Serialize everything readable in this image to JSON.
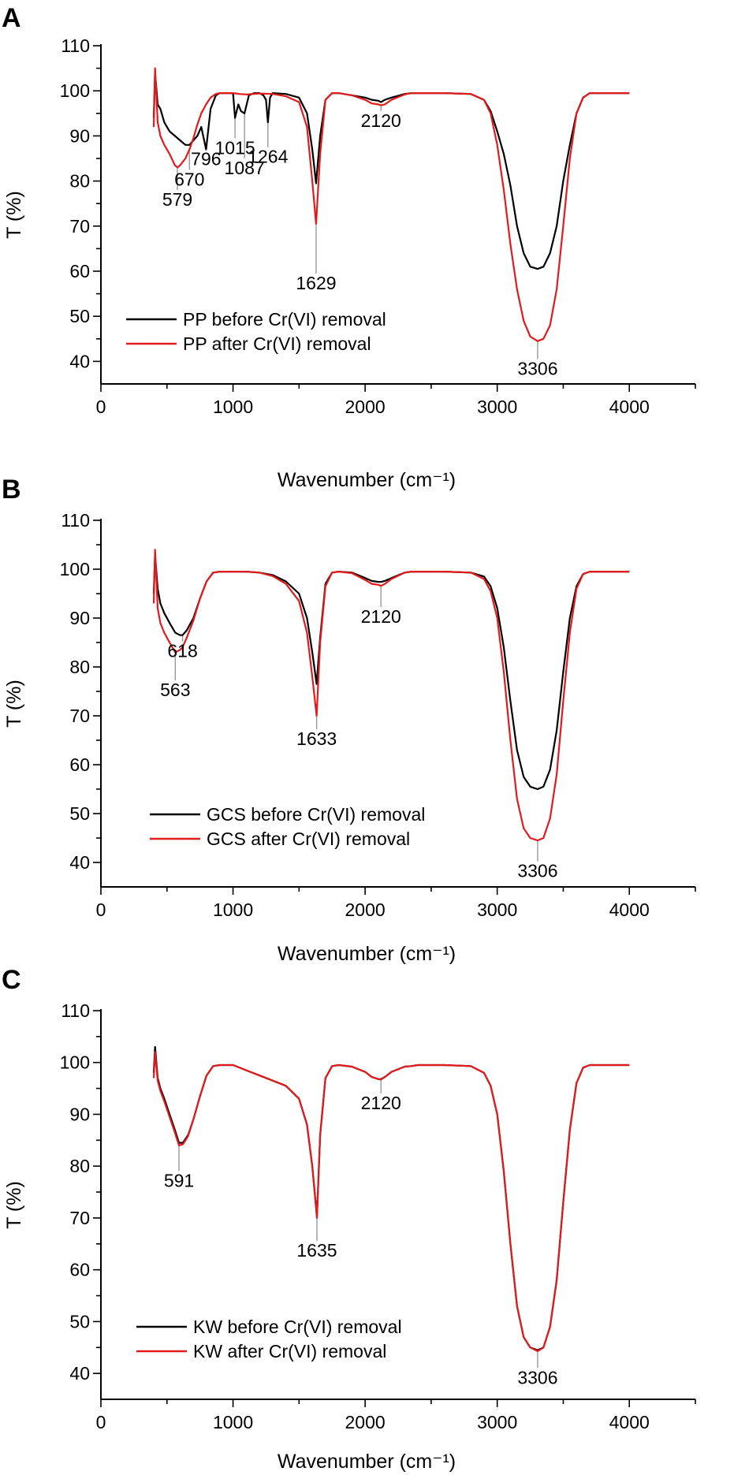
{
  "chart_data": [
    {
      "panel_label": "A",
      "type": "line",
      "title": "",
      "xlabel": "Wavenumber (cm⁻¹)",
      "ylabel": "T (%)",
      "xlim": [
        0,
        4500
      ],
      "ylim": [
        35,
        110
      ],
      "x_ticks": [
        "0",
        "1000",
        "2000",
        "3000",
        "4000"
      ],
      "y_ticks": [
        "40",
        "50",
        "60",
        "70",
        "80",
        "90",
        "100",
        "110"
      ],
      "grid": false,
      "legend_position": "bottom-left",
      "series": [
        {
          "name": "PP before Cr(VI) removal",
          "color": "#000000",
          "x": [
            400,
            410,
            430,
            450,
            480,
            520,
            560,
            600,
            640,
            670,
            700,
            730,
            760,
            796,
            830,
            870,
            900,
            950,
            1000,
            1015,
            1040,
            1060,
            1087,
            1120,
            1160,
            1200,
            1230,
            1250,
            1264,
            1280,
            1300,
            1400,
            1500,
            1560,
            1600,
            1629,
            1660,
            1700,
            1750,
            1800,
            1900,
            2000,
            2050,
            2100,
            2120,
            2150,
            2200,
            2300,
            2350,
            2400,
            2600,
            2800,
            2900,
            2950,
            3000,
            3050,
            3100,
            3150,
            3200,
            3250,
            3306,
            3350,
            3400,
            3450,
            3500,
            3550,
            3600,
            3650,
            3700,
            3750,
            3800,
            3900,
            4000
          ],
          "y": [
            94,
            104,
            97,
            96,
            93,
            91,
            90,
            89,
            88,
            88,
            89,
            90,
            92,
            87,
            96,
            99,
            99.5,
            99.5,
            99.5,
            94,
            97,
            95.5,
            95,
            99,
            99.5,
            99.5,
            99,
            98,
            93,
            98.5,
            99.5,
            99.3,
            98.5,
            95,
            87,
            79.5,
            90,
            98,
            99.5,
            99.5,
            99,
            98.5,
            98,
            97.8,
            97.5,
            98,
            98.5,
            99.3,
            99.5,
            99.5,
            99.5,
            99.3,
            98,
            95.5,
            91,
            86,
            79,
            70,
            64,
            61,
            60.5,
            61,
            64,
            70,
            80,
            88,
            95,
            98.5,
            99.5,
            99.5,
            99.5,
            99.5,
            99.5
          ]
        },
        {
          "name": "PP after Cr(VI) removal",
          "color": "#e31a1c",
          "x": [
            400,
            410,
            430,
            450,
            480,
            520,
            560,
            579,
            600,
            640,
            670,
            700,
            730,
            760,
            796,
            830,
            870,
            900,
            950,
            1000,
            1050,
            1100,
            1200,
            1300,
            1400,
            1500,
            1560,
            1600,
            1629,
            1660,
            1700,
            1750,
            1800,
            1900,
            2000,
            2050,
            2100,
            2120,
            2150,
            2200,
            2300,
            2350,
            2400,
            2600,
            2800,
            2900,
            2950,
            3000,
            3050,
            3100,
            3150,
            3200,
            3250,
            3306,
            3350,
            3400,
            3450,
            3500,
            3550,
            3600,
            3650,
            3700,
            3750,
            3800,
            3900,
            4000
          ],
          "y": [
            92,
            105,
            93,
            90,
            88,
            86,
            83.5,
            83,
            83.5,
            85,
            87,
            89.5,
            92.5,
            95,
            97,
            98.5,
            99.3,
            99.5,
            99.5,
            99.5,
            99.3,
            99.2,
            99.4,
            99.3,
            98.8,
            97.5,
            92,
            80,
            70.5,
            86,
            98,
            99.5,
            99.5,
            99,
            98,
            97.2,
            97,
            96.8,
            97,
            98,
            99.2,
            99.5,
            99.5,
            99.5,
            99.3,
            98,
            95,
            88,
            78,
            66,
            56,
            49,
            45.5,
            44.5,
            45,
            48,
            56,
            70,
            85,
            95,
            98.5,
            99.5,
            99.5,
            99.5,
            99.5,
            99.5
          ]
        }
      ],
      "annotations": [
        {
          "text": "579",
          "x": 579,
          "y": 83,
          "label_y": 74.5
        },
        {
          "text": "670",
          "x": 670,
          "y": 87,
          "label_y": 79
        },
        {
          "text": "796",
          "x": 796,
          "y": 87,
          "label_y": 83.5
        },
        {
          "text": "1015",
          "x": 1015,
          "y": 94,
          "label_y": 86
        },
        {
          "text": "1087",
          "x": 1087,
          "y": 95,
          "label_y": 81.5
        },
        {
          "text": "1264",
          "x": 1264,
          "y": 93,
          "label_y": 84
        },
        {
          "text": "1629",
          "x": 1629,
          "y": 70.5,
          "label_y": 56
        },
        {
          "text": "2120",
          "x": 2120,
          "y": 97,
          "label_y": 92
        },
        {
          "text": "3306",
          "x": 3306,
          "y": 44.5,
          "label_y": 37
        }
      ]
    },
    {
      "panel_label": "B",
      "type": "line",
      "title": "",
      "xlabel": "Wavenumber (cm⁻¹)",
      "ylabel": "T (%)",
      "xlim": [
        0,
        4500
      ],
      "ylim": [
        35,
        110
      ],
      "x_ticks": [
        "0",
        "1000",
        "2000",
        "3000",
        "4000"
      ],
      "y_ticks": [
        "40",
        "50",
        "60",
        "70",
        "80",
        "90",
        "100",
        "110"
      ],
      "grid": false,
      "legend_position": "bottom-left",
      "series": [
        {
          "name": "GCS before Cr(VI) removal",
          "color": "#000000",
          "x": [
            400,
            410,
            430,
            450,
            480,
            520,
            563,
            600,
            618,
            650,
            700,
            750,
            800,
            850,
            900,
            1000,
            1100,
            1200,
            1300,
            1400,
            1500,
            1560,
            1600,
            1633,
            1660,
            1700,
            1750,
            1800,
            1900,
            2000,
            2050,
            2100,
            2120,
            2150,
            2200,
            2300,
            2350,
            2400,
            2600,
            2800,
            2900,
            2950,
            3000,
            3050,
            3100,
            3150,
            3200,
            3250,
            3306,
            3350,
            3400,
            3450,
            3500,
            3550,
            3600,
            3650,
            3700,
            3750,
            3800,
            3900,
            4000
          ],
          "y": [
            95,
            103,
            96,
            93,
            91,
            89,
            87,
            86.5,
            86.5,
            87.5,
            90,
            94,
            97.5,
            99.3,
            99.5,
            99.5,
            99.5,
            99.3,
            98.8,
            97.5,
            95,
            90,
            83,
            76.5,
            86,
            97,
            99.3,
            99.5,
            99.3,
            98.2,
            97.6,
            97.4,
            97.4,
            97.6,
            98.2,
            99.3,
            99.5,
            99.5,
            99.5,
            99.3,
            98.5,
            96.5,
            92,
            84,
            73,
            63,
            57.5,
            55.5,
            55,
            55.5,
            59,
            67,
            79,
            90,
            96.5,
            99,
            99.5,
            99.5,
            99.5,
            99.5,
            99.5
          ]
        },
        {
          "name": "GCS after Cr(VI) removal",
          "color": "#e31a1c",
          "x": [
            400,
            410,
            430,
            450,
            480,
            520,
            563,
            600,
            618,
            650,
            700,
            750,
            800,
            850,
            900,
            1000,
            1100,
            1200,
            1300,
            1400,
            1500,
            1560,
            1600,
            1633,
            1660,
            1700,
            1750,
            1800,
            1900,
            2000,
            2050,
            2100,
            2120,
            2150,
            2200,
            2300,
            2350,
            2400,
            2600,
            2800,
            2900,
            2950,
            3000,
            3050,
            3100,
            3150,
            3200,
            3250,
            3306,
            3350,
            3400,
            3450,
            3500,
            3550,
            3600,
            3650,
            3700,
            3750,
            3800,
            3900,
            4000
          ],
          "y": [
            93,
            104,
            92,
            89,
            87,
            85,
            83,
            83.5,
            84,
            86,
            89.5,
            94,
            97.5,
            99.3,
            99.5,
            99.5,
            99.5,
            99.3,
            98.6,
            97,
            93.5,
            87,
            78,
            70,
            85,
            96.5,
            99.3,
            99.5,
            99.2,
            97.8,
            97,
            96.8,
            96.6,
            97,
            98,
            99.3,
            99.5,
            99.5,
            99.5,
            99.3,
            98,
            95.5,
            90,
            79,
            65,
            53,
            47,
            45,
            44.5,
            45,
            49,
            58,
            73,
            87,
            96,
            99,
            99.5,
            99.5,
            99.5,
            99.5,
            99.5
          ]
        }
      ],
      "annotations": [
        {
          "text": "563",
          "x": 563,
          "y": 83,
          "label_y": 74
        },
        {
          "text": "618",
          "x": 618,
          "y": 86.5,
          "label_y": 82
        },
        {
          "text": "1633",
          "x": 1633,
          "y": 70,
          "label_y": 64
        },
        {
          "text": "2120",
          "x": 2120,
          "y": 96.6,
          "label_y": 89
        },
        {
          "text": "3306",
          "x": 3306,
          "y": 44.5,
          "label_y": 37
        }
      ]
    },
    {
      "panel_label": "C",
      "type": "line",
      "title": "",
      "xlabel": "Wavenumber (cm⁻¹)",
      "ylabel": "T (%)",
      "xlim": [
        0,
        4500
      ],
      "ylim": [
        35,
        110
      ],
      "x_ticks": [
        "0",
        "1000",
        "2000",
        "3000",
        "4000"
      ],
      "y_ticks": [
        "40",
        "50",
        "60",
        "70",
        "80",
        "90",
        "100",
        "110"
      ],
      "grid": false,
      "legend_position": "bottom-left",
      "series": [
        {
          "name": "KW before Cr(VI) removal",
          "color": "#000000",
          "x": [
            400,
            410,
            430,
            450,
            480,
            520,
            560,
            591,
            620,
            660,
            700,
            750,
            800,
            850,
            900,
            1000,
            1100,
            1200,
            1300,
            1400,
            1500,
            1560,
            1600,
            1635,
            1660,
            1700,
            1750,
            1800,
            1900,
            2000,
            2050,
            2100,
            2120,
            2150,
            2200,
            2300,
            2350,
            2400,
            2600,
            2800,
            2900,
            2950,
            3000,
            3050,
            3100,
            3150,
            3200,
            3250,
            3306,
            3350,
            3400,
            3450,
            3500,
            3550,
            3600,
            3650,
            3700,
            3750,
            3800,
            3900,
            4000
          ],
          "y": [
            98,
            103,
            97,
            95,
            93,
            90,
            87,
            84.5,
            84.5,
            86,
            89,
            93.5,
            97.5,
            99.3,
            99.5,
            99.5,
            98.5,
            97.5,
            96.5,
            95.5,
            93,
            88,
            80,
            70.3,
            86,
            97,
            99.3,
            99.5,
            99.2,
            98.2,
            97.2,
            96.8,
            96.8,
            97.2,
            98.2,
            99.2,
            99.3,
            99.5,
            99.5,
            99.3,
            98,
            95.5,
            90,
            79,
            65,
            53,
            47,
            45,
            44.5,
            45,
            49,
            58,
            73,
            87,
            96,
            99,
            99.5,
            99.5,
            99.5,
            99.5,
            99.5
          ]
        },
        {
          "name": "KW after Cr(VI) removal",
          "color": "#e31a1c",
          "x": [
            400,
            410,
            430,
            450,
            480,
            520,
            560,
            591,
            620,
            660,
            700,
            750,
            800,
            850,
            900,
            1000,
            1100,
            1200,
            1300,
            1400,
            1500,
            1560,
            1600,
            1635,
            1660,
            1700,
            1750,
            1800,
            1900,
            2000,
            2050,
            2100,
            2120,
            2150,
            2200,
            2300,
            2350,
            2400,
            2600,
            2800,
            2900,
            2950,
            3000,
            3050,
            3100,
            3150,
            3200,
            3250,
            3306,
            3350,
            3400,
            3450,
            3500,
            3550,
            3600,
            3650,
            3700,
            3750,
            3800,
            3900,
            4000
          ],
          "y": [
            97,
            102,
            96.5,
            94.5,
            92.5,
            89.5,
            86.5,
            84,
            84.2,
            85.8,
            89,
            93.5,
            97.5,
            99.3,
            99.5,
            99.5,
            98.5,
            97.5,
            96.5,
            95.5,
            93,
            88,
            80,
            70,
            86,
            97,
            99.3,
            99.5,
            99.2,
            98.2,
            97.2,
            96.8,
            96.7,
            97.2,
            98.2,
            99.2,
            99.3,
            99.5,
            99.5,
            99.3,
            98,
            95.5,
            90,
            79,
            65,
            53,
            47,
            45,
            44.3,
            45,
            49,
            58,
            73,
            87,
            96,
            99,
            99.5,
            99.5,
            99.5,
            99.5,
            99.5
          ]
        }
      ],
      "annotations": [
        {
          "text": "591",
          "x": 591,
          "y": 84,
          "label_y": 76
        },
        {
          "text": "1635",
          "x": 1635,
          "y": 70,
          "label_y": 62.5
        },
        {
          "text": "2120",
          "x": 2120,
          "y": 96.7,
          "label_y": 91
        },
        {
          "text": "3306",
          "x": 3306,
          "y": 44.3,
          "label_y": 38
        }
      ]
    }
  ]
}
